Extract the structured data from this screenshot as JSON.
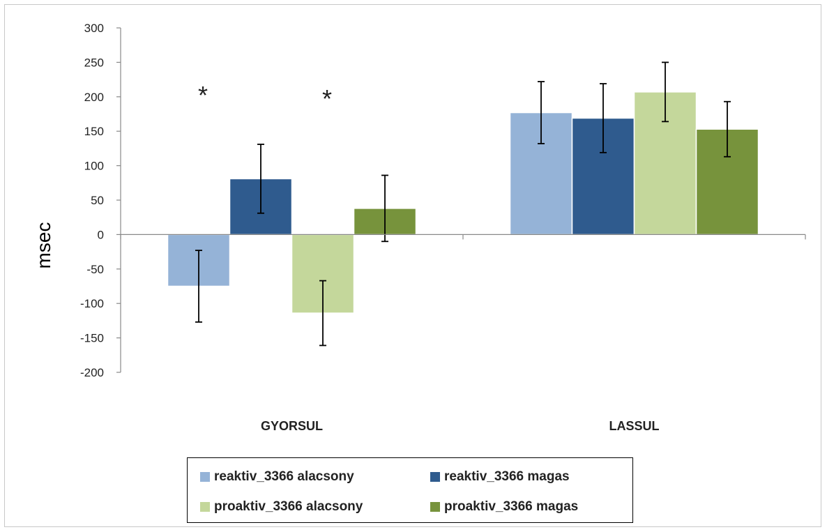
{
  "chart_data": {
    "type": "bar",
    "ylabel": "msec",
    "ylim": [
      -200,
      300
    ],
    "yticks": [
      300,
      250,
      200,
      150,
      100,
      50,
      0,
      -50,
      -100,
      -150,
      -200
    ],
    "categories": [
      "GYORSUL",
      "LASSUL"
    ],
    "series": [
      {
        "name": "reaktiv_3366 alacsony",
        "color": "#95b3d7",
        "values": [
          -75,
          177
        ],
        "errors": [
          52,
          45
        ]
      },
      {
        "name": "reaktiv_3366 magas",
        "color": "#2f5b8e",
        "values": [
          81,
          169
        ],
        "errors": [
          50,
          50
        ]
      },
      {
        "name": "proaktiv_3366 alacsony",
        "color": "#c4d79b",
        "values": [
          -114,
          207
        ],
        "errors": [
          47,
          43
        ]
      },
      {
        "name": "proaktiv_3366 magas",
        "color": "#77933c",
        "values": [
          38,
          153
        ],
        "errors": [
          48,
          40
        ]
      }
    ],
    "annotations": [
      {
        "text": "*",
        "category": "GYORSUL",
        "series_index": 1,
        "y": 210
      },
      {
        "text": "*",
        "category": "GYORSUL",
        "series_index": 3,
        "y": 205
      }
    ],
    "legend_position": "bottom"
  }
}
